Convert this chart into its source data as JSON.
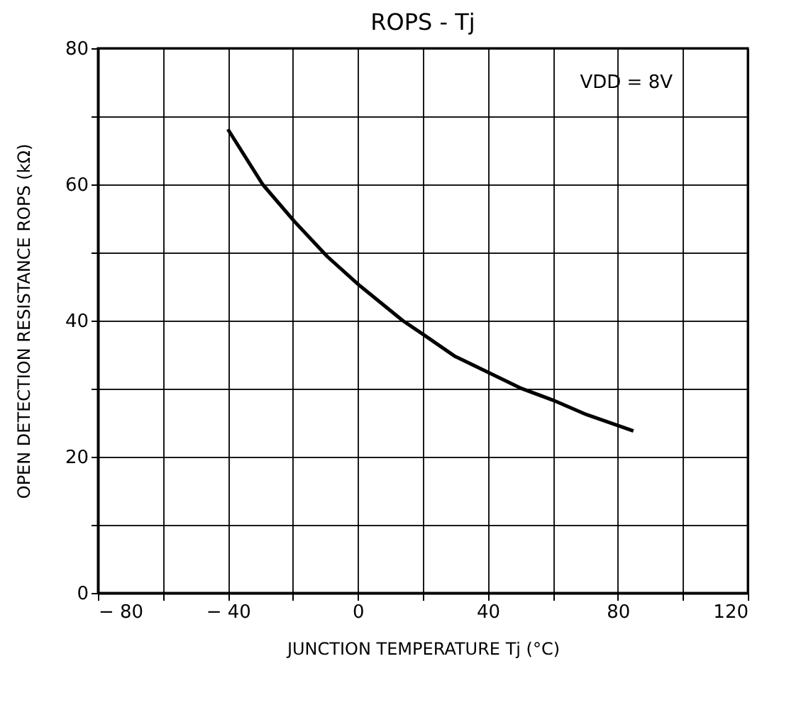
{
  "chart_data": {
    "type": "line",
    "title": "ROPS - Tj",
    "xlabel": "JUNCTION TEMPERATURE  Tj  (°C)",
    "ylabel": "OPEN DETECTION RESISTANCE ROPS  (kΩ)",
    "x": [
      -40,
      -29.3,
      -19.6,
      -9.4,
      0.4,
      13.8,
      20.3,
      29.7,
      40.1,
      50,
      60.1,
      70.3,
      84.8
    ],
    "series": [
      {
        "color": "#000000",
        "values": [
          68.1,
          60.0,
          54.6,
          49.4,
          45.2,
          40.0,
          37.9,
          34.8,
          32.4,
          30.1,
          28.3,
          26.2,
          23.8
        ]
      }
    ],
    "xlim": [
      -80,
      120
    ],
    "ylim": [
      0,
      80
    ],
    "xticks": [
      {
        "value": -80,
        "label": "− 80"
      },
      {
        "value": -60,
        "label": null
      },
      {
        "value": -40,
        "label": "− 40"
      },
      {
        "value": -20,
        "label": null
      },
      0,
      {
        "value": 20,
        "label": null
      },
      40,
      {
        "value": 60,
        "label": null
      },
      80,
      {
        "value": 100,
        "label": null
      },
      120
    ],
    "yticks": [
      0,
      {
        "value": 10,
        "label": null
      },
      20,
      {
        "value": 30,
        "label": null
      },
      40,
      {
        "value": 50,
        "label": null
      },
      60,
      {
        "value": 70,
        "label": null
      },
      80
    ],
    "annotations": [
      "VDD = 8V"
    ],
    "grid": true,
    "marker": "none",
    "line_style": "solid"
  }
}
